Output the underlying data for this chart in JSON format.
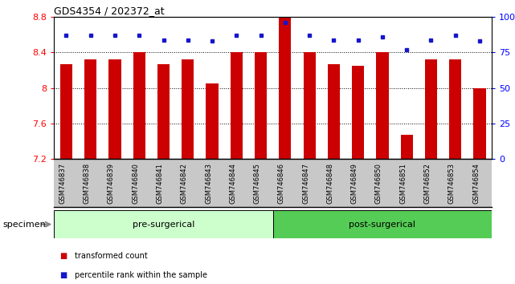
{
  "title": "GDS4354 / 202372_at",
  "categories": [
    "GSM746837",
    "GSM746838",
    "GSM746839",
    "GSM746840",
    "GSM746841",
    "GSM746842",
    "GSM746843",
    "GSM746844",
    "GSM746845",
    "GSM746846",
    "GSM746847",
    "GSM746848",
    "GSM746849",
    "GSM746850",
    "GSM746851",
    "GSM746852",
    "GSM746853",
    "GSM746854"
  ],
  "bar_values": [
    8.27,
    8.32,
    8.32,
    8.4,
    8.27,
    8.32,
    8.05,
    8.4,
    8.4,
    8.8,
    8.4,
    8.27,
    8.25,
    8.4,
    7.47,
    8.32,
    8.32,
    8.0
  ],
  "percentile_values": [
    87,
    87,
    87,
    87,
    84,
    84,
    83,
    87,
    87,
    96,
    87,
    84,
    84,
    86,
    77,
    84,
    87,
    83
  ],
  "bar_color": "#cc0000",
  "dot_color": "#1515cc",
  "ylim_left": [
    7.2,
    8.8
  ],
  "ylim_right": [
    0,
    100
  ],
  "yticks_left": [
    7.2,
    7.6,
    8.0,
    8.4,
    8.8
  ],
  "ytick_labels_left": [
    "7.2",
    "7.6",
    "8",
    "8.4",
    "8.8"
  ],
  "yticks_right": [
    0,
    25,
    50,
    75,
    100
  ],
  "ytick_labels_right": [
    "0",
    "25",
    "50",
    "75",
    "100%"
  ],
  "grid_lines": [
    7.6,
    8.0,
    8.4,
    8.8
  ],
  "pre_surgical_count": 9,
  "post_surgical_count": 9,
  "pre_label": "pre-surgerical",
  "post_label": "post-surgerical",
  "pre_color": "#ccffcc",
  "post_color": "#55cc55",
  "specimen_label": "specimen",
  "legend_red_label": "transformed count",
  "legend_blue_label": "percentile rank within the sample",
  "background_color": "#ffffff",
  "tick_area_bg": "#c8c8c8",
  "bar_bottom": 7.2
}
